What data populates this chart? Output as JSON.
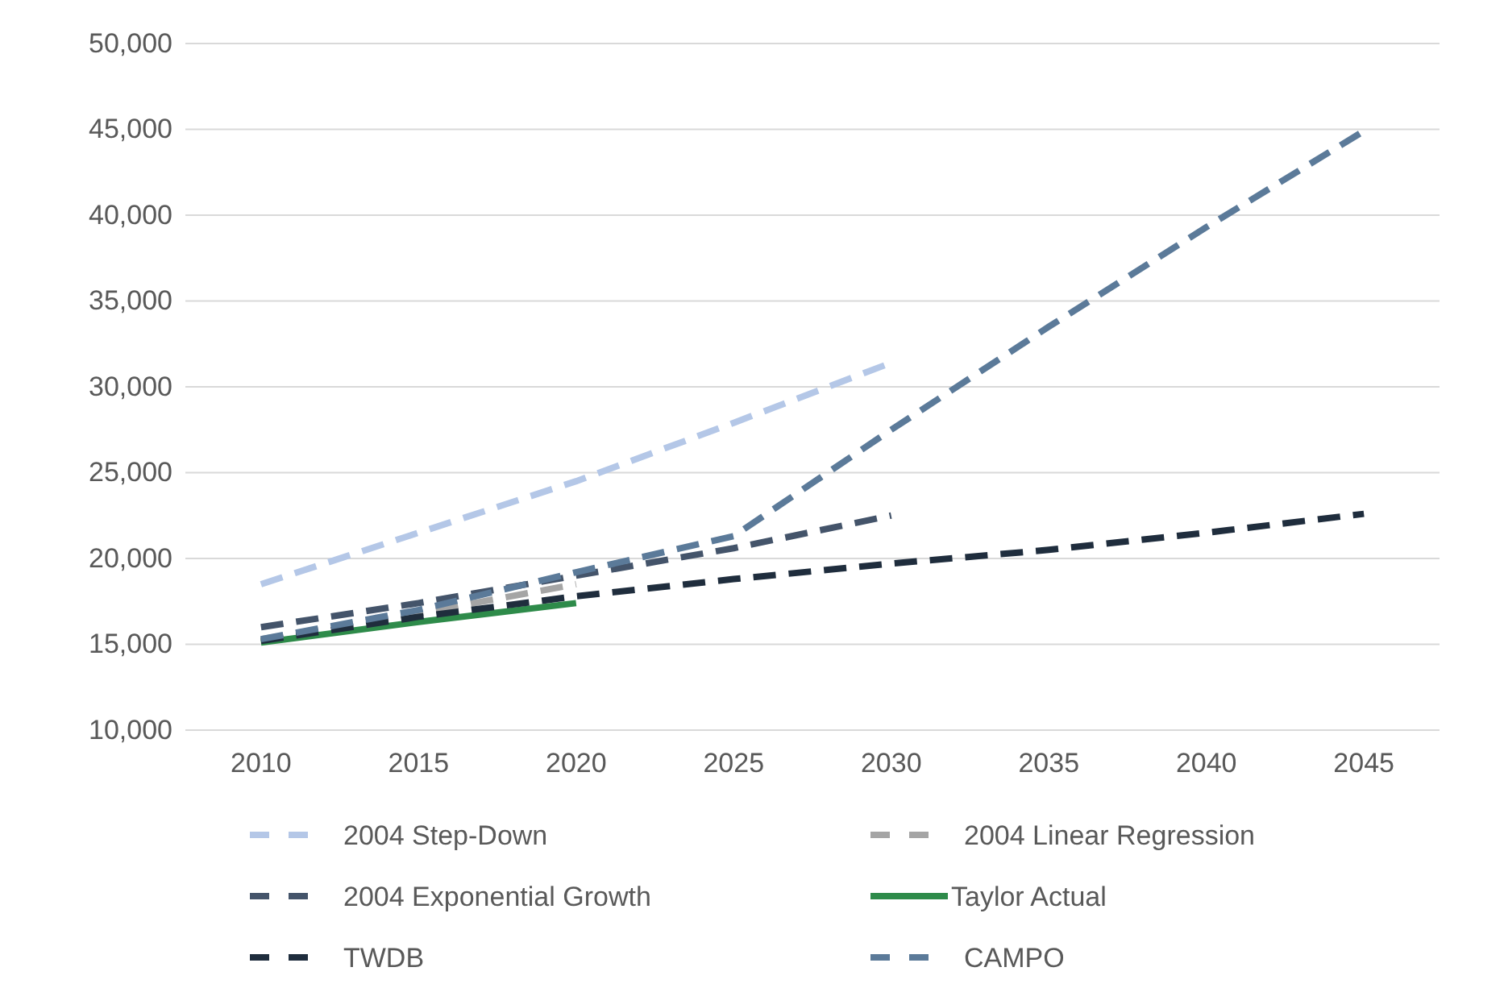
{
  "chart_data": {
    "type": "line",
    "x": [
      2010,
      2015,
      2020,
      2025,
      2030,
      2035,
      2040,
      2045
    ],
    "xlim": [
      2007.6,
      2047.4
    ],
    "xticks": [
      2010,
      2015,
      2020,
      2025,
      2030,
      2035,
      2040,
      2045
    ],
    "ylim": [
      10000,
      50000
    ],
    "yticks": [
      {
        "value": 10000,
        "label": "10,000"
      },
      {
        "value": 15000,
        "label": "15,000"
      },
      {
        "value": 20000,
        "label": "20,000"
      },
      {
        "value": 25000,
        "label": "25,000"
      },
      {
        "value": 30000,
        "label": "30,000"
      },
      {
        "value": 35000,
        "label": "35,000"
      },
      {
        "value": 40000,
        "label": "40,000"
      },
      {
        "value": 45000,
        "label": "45,000"
      },
      {
        "value": 50000,
        "label": "50,000"
      }
    ],
    "grid": "y",
    "legend": "bottom",
    "series": [
      {
        "name": "2004 Step-Down",
        "color": "#b4c7e7",
        "line_style": "dashed",
        "values": [
          18500,
          21500,
          24500,
          27900,
          31400,
          null,
          null,
          null
        ]
      },
      {
        "name": "2004 Linear Regression",
        "color": "#a5a5a5",
        "line_style": "dashed",
        "values": [
          15300,
          16800,
          18500,
          null,
          null,
          null,
          null,
          null
        ]
      },
      {
        "name": "2004 Exponential Growth",
        "color": "#44546a",
        "line_style": "dashed",
        "values": [
          16000,
          17400,
          19000,
          20600,
          22500,
          null,
          null,
          null
        ]
      },
      {
        "name": "Taylor Actual",
        "color": "#2e8b4a",
        "line_style": "solid",
        "values": [
          15100,
          16300,
          17400,
          null,
          null,
          null,
          null,
          null
        ]
      },
      {
        "name": "TWDB",
        "color": "#1f2d3d",
        "line_style": "dashed",
        "values": [
          15200,
          16600,
          17800,
          18800,
          19700,
          20500,
          21500,
          22600
        ]
      },
      {
        "name": "CAMPO",
        "color": "#5b7a99",
        "line_style": "dashed",
        "values": [
          15300,
          17000,
          19200,
          21300,
          27500,
          33500,
          39300,
          44900
        ]
      }
    ]
  }
}
